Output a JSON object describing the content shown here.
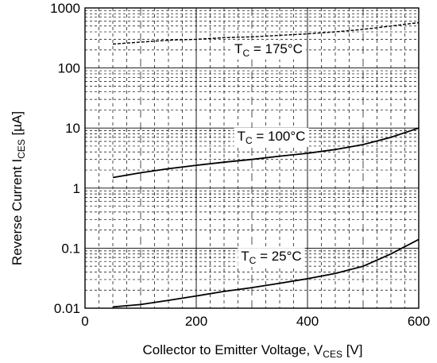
{
  "chart_data": {
    "type": "line",
    "xlabel": "Collector to Emitter Voltage, V",
    "xlabel_sub": "CES",
    "xlabel_unit": " [V]",
    "ylabel": "Reverse Current I",
    "ylabel_sub": "CES",
    "ylabel_unit": " [µA]",
    "xlim": [
      0,
      600
    ],
    "ylim": [
      0.01,
      1000
    ],
    "yscale": "log",
    "grid": true,
    "xticks": [
      {
        "value": 0,
        "label": "0"
      },
      {
        "value": 200,
        "label": "200"
      },
      {
        "value": 400,
        "label": "400"
      },
      {
        "value": 600,
        "label": "600"
      }
    ],
    "yticks": [
      {
        "value": 0.01,
        "label": "0.01"
      },
      {
        "value": 0.1,
        "label": "0.1"
      },
      {
        "value": 1,
        "label": "1"
      },
      {
        "value": 10,
        "label": "10"
      },
      {
        "value": 100,
        "label": "100"
      },
      {
        "value": 1000,
        "label": "1000"
      }
    ],
    "series": [
      {
        "id": "tc175",
        "style": "dashed",
        "x": [
          50,
          100,
          150,
          200,
          250,
          300,
          350,
          400,
          450,
          500,
          550,
          600
        ],
        "y": [
          250,
          270,
          290,
          300,
          320,
          330,
          350,
          370,
          400,
          440,
          500,
          570
        ]
      },
      {
        "id": "tc100",
        "style": "solid",
        "x": [
          50,
          100,
          150,
          200,
          250,
          300,
          350,
          400,
          450,
          500,
          550,
          600
        ],
        "y": [
          1.5,
          1.8,
          2.1,
          2.4,
          2.7,
          3.0,
          3.4,
          3.8,
          4.4,
          5.3,
          7.0,
          10.0
        ]
      },
      {
        "id": "tc25",
        "style": "solid",
        "x": [
          50,
          100,
          150,
          200,
          250,
          300,
          350,
          400,
          450,
          500,
          550,
          600
        ],
        "y": [
          0.0105,
          0.0115,
          0.0135,
          0.016,
          0.019,
          0.022,
          0.026,
          0.031,
          0.038,
          0.05,
          0.08,
          0.14
        ]
      }
    ],
    "annotations": [
      {
        "id": "tc175",
        "prefix": "T",
        "sub": "C",
        "text": " = 175°C",
        "x": 330,
        "y": 200
      },
      {
        "id": "tc100",
        "prefix": "T",
        "sub": "C",
        "text": " = 100°C",
        "x": 335,
        "y": 7
      },
      {
        "id": "tc25",
        "prefix": "T",
        "sub": "C",
        "text": " = 25°C",
        "x": 335,
        "y": 0.07
      }
    ]
  }
}
